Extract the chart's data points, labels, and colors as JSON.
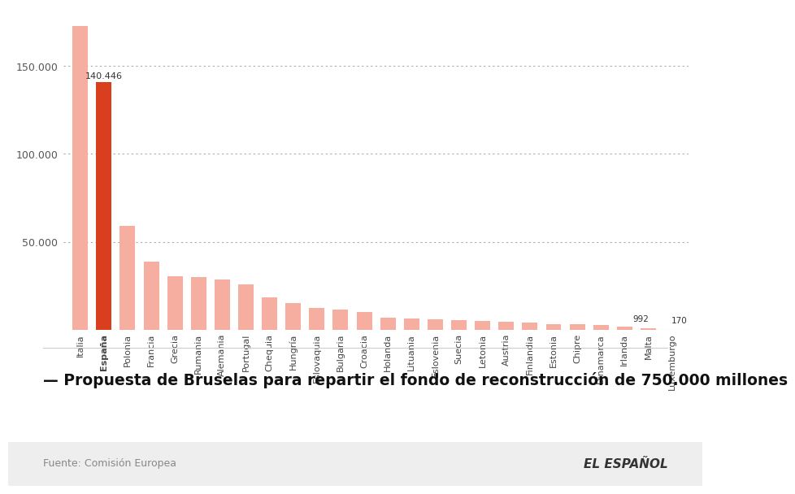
{
  "categories": [
    "Italia",
    "España",
    "Polonia",
    "Francia",
    "Grecia",
    "Rumania",
    "Alemania",
    "Portugal",
    "Chequia",
    "Hungría",
    "Eslovaquia",
    "Bulgaria",
    "Croacia",
    "Holanda",
    "Lituania",
    "Eslovenia",
    "Suecia",
    "Letonia",
    "Austria",
    "Finlandia",
    "Estonia",
    "Chipre",
    "Dinamarca",
    "Irlanda",
    "Malta",
    "Luxemburgo"
  ],
  "values": [
    172700,
    140446,
    59000,
    38600,
    30500,
    29900,
    28600,
    25800,
    18600,
    15400,
    12500,
    11500,
    10300,
    7100,
    6500,
    5800,
    5500,
    5200,
    4800,
    4300,
    3400,
    3100,
    2700,
    2000,
    992,
    170
  ],
  "bar_colors_type": [
    "light",
    "highlight",
    "light",
    "light",
    "light",
    "light",
    "light",
    "light",
    "light",
    "light",
    "light",
    "light",
    "light",
    "light",
    "light",
    "light",
    "light",
    "light",
    "light",
    "light",
    "light",
    "light",
    "light",
    "light",
    "light",
    "light"
  ],
  "light_color": "#f5aea0",
  "highlight_color": "#d93f1e",
  "label_espana": "140.446",
  "label_malta": "992",
  "label_luxemburgo": "170",
  "ytick_labels": [
    "50.000",
    "100.000",
    "150.000"
  ],
  "ytick_values": [
    50000,
    100000,
    150000
  ],
  "background_color": "#ffffff",
  "title": "— Propuesta de Bruselas para repartir el fondo de reconstrucción de 750.000 millones",
  "source": "Fuente: Comisión Europea",
  "logo": "EL ESPAÑOL",
  "title_fontsize": 13.5,
  "source_fontsize": 9,
  "logo_fontsize": 11
}
